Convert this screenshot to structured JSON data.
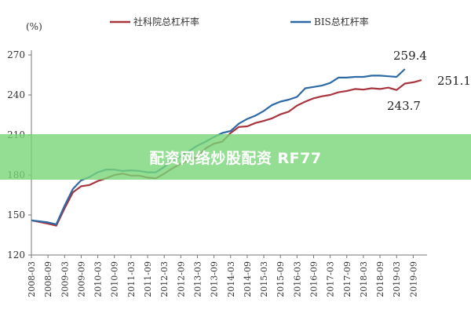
{
  "chart_data": {
    "type": "line",
    "ylabel": "(%)",
    "ylim": [
      120,
      270
    ],
    "yticks": [
      120,
      150,
      180,
      210,
      240,
      270
    ],
    "x": [
      "2008-03",
      "2008-09",
      "2009-03",
      "2009-09",
      "2010-03",
      "2010-09",
      "2011-03",
      "2011-09",
      "2012-03",
      "2012-09",
      "2013-03",
      "2013-09",
      "2014-03",
      "2014-09",
      "2015-03",
      "2015-09",
      "2016-03",
      "2016-09",
      "2017-03",
      "2017-09",
      "2018-03",
      "2018-09",
      "2019-03",
      "2019-09"
    ],
    "x_ticks": [
      "2008-03",
      "2008-09",
      "2009-03",
      "2009-09",
      "2010-03",
      "2010-09",
      "2011-03",
      "2011-09",
      "2012-03",
      "2012-09",
      "2013-03",
      "2013-09",
      "2014-03",
      "2014-09",
      "2015-03",
      "2015-09",
      "2016-03",
      "2016-09",
      "2017-03",
      "2017-09",
      "2018-03",
      "2018-09",
      "2019-03",
      "2019-09"
    ],
    "series": [
      {
        "name": "社科院总杠杆率",
        "color": "#a8343e",
        "values": [
          {
            "x": 0,
            "y": 146.0
          },
          {
            "x": 1,
            "y": 143.5
          },
          {
            "x": 1.5,
            "y": 142.0
          },
          {
            "x": 2,
            "y": 155.0
          },
          {
            "x": 2.5,
            "y": 167.0
          },
          {
            "x": 3,
            "y": 171.5
          },
          {
            "x": 3.5,
            "y": 172.5
          },
          {
            "x": 4,
            "y": 175.5
          },
          {
            "x": 4.5,
            "y": 177.5
          },
          {
            "x": 5,
            "y": 180.0
          },
          {
            "x": 5.5,
            "y": 181.0
          },
          {
            "x": 6,
            "y": 179.5
          },
          {
            "x": 6.5,
            "y": 179.5
          },
          {
            "x": 7,
            "y": 178.0
          },
          {
            "x": 7.5,
            "y": 177.5
          },
          {
            "x": 8,
            "y": 181.0
          },
          {
            "x": 8.5,
            "y": 185.0
          },
          {
            "x": 9,
            "y": 188.5
          },
          {
            "x": 9.5,
            "y": 191.0
          },
          {
            "x": 10,
            "y": 193.5
          },
          {
            "x": 10.5,
            "y": 200.0
          },
          {
            "x": 11,
            "y": 203.5
          },
          {
            "x": 11.5,
            "y": 205.0
          },
          {
            "x": 12,
            "y": 211.5
          },
          {
            "x": 12.5,
            "y": 216.0
          },
          {
            "x": 13,
            "y": 216.5
          },
          {
            "x": 13.5,
            "y": 219.0
          },
          {
            "x": 14,
            "y": 220.5
          },
          {
            "x": 14.5,
            "y": 222.5
          },
          {
            "x": 15,
            "y": 225.5
          },
          {
            "x": 15.5,
            "y": 227.5
          },
          {
            "x": 16,
            "y": 232.0
          },
          {
            "x": 16.5,
            "y": 235.0
          },
          {
            "x": 17,
            "y": 237.5
          },
          {
            "x": 17.5,
            "y": 239.0
          },
          {
            "x": 18,
            "y": 240.0
          },
          {
            "x": 18.5,
            "y": 242.0
          },
          {
            "x": 19,
            "y": 243.0
          },
          {
            "x": 19.5,
            "y": 244.5
          },
          {
            "x": 20,
            "y": 244.0
          },
          {
            "x": 20.5,
            "y": 245.0
          },
          {
            "x": 21,
            "y": 244.5
          },
          {
            "x": 21.5,
            "y": 245.5
          },
          {
            "x": 22,
            "y": 243.7
          },
          {
            "x": 22.5,
            "y": 248.5
          },
          {
            "x": 23,
            "y": 249.5
          },
          {
            "x": 23.5,
            "y": 251.1
          }
        ]
      },
      {
        "name": "BIS总杠杆率",
        "color": "#2d6aa5",
        "values": [
          {
            "x": 0,
            "y": 146.0
          },
          {
            "x": 1,
            "y": 144.5
          },
          {
            "x": 1.5,
            "y": 143.0
          },
          {
            "x": 2,
            "y": 157.0
          },
          {
            "x": 2.5,
            "y": 169.5
          },
          {
            "x": 3,
            "y": 176.0
          },
          {
            "x": 3.5,
            "y": 178.5
          },
          {
            "x": 4,
            "y": 182.0
          },
          {
            "x": 4.5,
            "y": 184.0
          },
          {
            "x": 5,
            "y": 184.0
          },
          {
            "x": 5.5,
            "y": 183.0
          },
          {
            "x": 6,
            "y": 183.5
          },
          {
            "x": 6.5,
            "y": 183.0
          },
          {
            "x": 7,
            "y": 182.0
          },
          {
            "x": 7.5,
            "y": 182.0
          },
          {
            "x": 8,
            "y": 186.0
          },
          {
            "x": 8.5,
            "y": 191.0
          },
          {
            "x": 9,
            "y": 194.0
          },
          {
            "x": 9.5,
            "y": 198.0
          },
          {
            "x": 10,
            "y": 202.0
          },
          {
            "x": 10.5,
            "y": 205.0
          },
          {
            "x": 11,
            "y": 208.5
          },
          {
            "x": 11.5,
            "y": 211.5
          },
          {
            "x": 12,
            "y": 213.0
          },
          {
            "x": 12.5,
            "y": 218.5
          },
          {
            "x": 13,
            "y": 222.0
          },
          {
            "x": 13.5,
            "y": 224.5
          },
          {
            "x": 14,
            "y": 228.0
          },
          {
            "x": 14.5,
            "y": 232.5
          },
          {
            "x": 15,
            "y": 235.0
          },
          {
            "x": 15.5,
            "y": 236.5
          },
          {
            "x": 16,
            "y": 238.5
          },
          {
            "x": 16.5,
            "y": 245.0
          },
          {
            "x": 17,
            "y": 246.0
          },
          {
            "x": 17.5,
            "y": 247.0
          },
          {
            "x": 18,
            "y": 249.0
          },
          {
            "x": 18.5,
            "y": 253.0
          },
          {
            "x": 19,
            "y": 253.0
          },
          {
            "x": 19.5,
            "y": 253.5
          },
          {
            "x": 20,
            "y": 253.5
          },
          {
            "x": 20.5,
            "y": 254.5
          },
          {
            "x": 21,
            "y": 254.5
          },
          {
            "x": 21.5,
            "y": 254.0
          },
          {
            "x": 22,
            "y": 253.5
          },
          {
            "x": 22.5,
            "y": 259.4
          }
        ]
      }
    ],
    "annotations": [
      {
        "text": "259.4",
        "series": 1
      },
      {
        "text": "251.1",
        "series": 0
      },
      {
        "text": "243.7",
        "series": 0
      }
    ],
    "legend_placement": "top",
    "grid": false
  },
  "watermark": {
    "text": "配资网络炒股配资 RF77",
    "color": "#78d678"
  }
}
